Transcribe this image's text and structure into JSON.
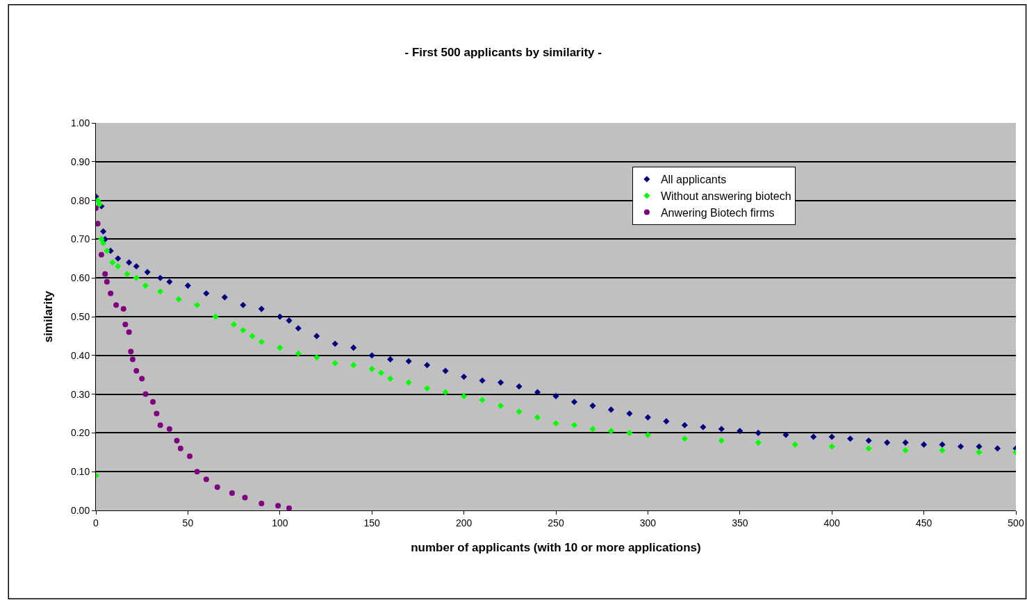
{
  "chart_data": {
    "type": "scatter",
    "title": "- First 500 applicants by similarity -",
    "xlabel": "number of applicants (with 10 or more applications)",
    "ylabel": "similarity",
    "xlim": [
      0,
      500
    ],
    "xticks": [
      0,
      50,
      100,
      150,
      200,
      250,
      300,
      350,
      400,
      450,
      500
    ],
    "ylim": [
      0,
      1
    ],
    "yticks": [
      {
        "value": 0,
        "label": "0.00"
      },
      {
        "value": 0.1,
        "label": "0.10"
      },
      {
        "value": 0.2,
        "label": "0.20"
      },
      {
        "value": 0.3,
        "label": "0.30"
      },
      {
        "value": 0.4,
        "label": "0.40"
      },
      {
        "value": 0.5,
        "label": "0.50"
      },
      {
        "value": 0.6,
        "label": "0.60"
      },
      {
        "value": 0.7,
        "label": "0.70"
      },
      {
        "value": 0.8,
        "label": "0.80"
      },
      {
        "value": 0.9,
        "label": "0.90"
      },
      {
        "value": 1,
        "label": "1.00"
      }
    ],
    "grid": "y",
    "legend": "top right",
    "marker": "diamond",
    "series": [
      {
        "name": "All applicants",
        "color": "#000080",
        "x": [
          0,
          3,
          4,
          5,
          8,
          12,
          18,
          22,
          28,
          35,
          40,
          50,
          60,
          70,
          80,
          90,
          100,
          105,
          110,
          120,
          130,
          140,
          150,
          160,
          170,
          180,
          190,
          200,
          210,
          220,
          230,
          240,
          250,
          260,
          270,
          280,
          290,
          300,
          310,
          320,
          330,
          340,
          350,
          360,
          375,
          390,
          400,
          410,
          420,
          430,
          440,
          450,
          460,
          470,
          480,
          490,
          500
        ],
        "values": [
          0.81,
          0.785,
          0.72,
          0.7,
          0.67,
          0.65,
          0.64,
          0.63,
          0.615,
          0.6,
          0.59,
          0.58,
          0.56,
          0.55,
          0.53,
          0.52,
          0.5,
          0.49,
          0.47,
          0.45,
          0.43,
          0.42,
          0.4,
          0.39,
          0.385,
          0.375,
          0.36,
          0.345,
          0.335,
          0.33,
          0.32,
          0.305,
          0.295,
          0.28,
          0.27,
          0.26,
          0.25,
          0.24,
          0.23,
          0.22,
          0.215,
          0.21,
          0.205,
          0.2,
          0.195,
          0.19,
          0.19,
          0.185,
          0.18,
          0.175,
          0.175,
          0.17,
          0.17,
          0.165,
          0.165,
          0.16,
          0.16
        ]
      },
      {
        "name": "Without answering biotech",
        "color": "#00ff00",
        "x": [
          0,
          1,
          2,
          3,
          4,
          6,
          9,
          12,
          17,
          22,
          27,
          35,
          45,
          55,
          65,
          75,
          80,
          85,
          90,
          100,
          110,
          120,
          130,
          140,
          150,
          155,
          160,
          170,
          180,
          190,
          200,
          210,
          220,
          230,
          240,
          250,
          260,
          270,
          280,
          290,
          300,
          320,
          340,
          360,
          380,
          400,
          420,
          440,
          460,
          480,
          500
        ],
        "values": [
          0.09,
          0.8,
          0.79,
          0.7,
          0.69,
          0.67,
          0.64,
          0.63,
          0.61,
          0.6,
          0.58,
          0.565,
          0.545,
          0.53,
          0.5,
          0.48,
          0.465,
          0.45,
          0.435,
          0.42,
          0.405,
          0.395,
          0.38,
          0.375,
          0.365,
          0.355,
          0.34,
          0.33,
          0.315,
          0.305,
          0.295,
          0.285,
          0.27,
          0.255,
          0.24,
          0.225,
          0.22,
          0.21,
          0.205,
          0.2,
          0.195,
          0.185,
          0.18,
          0.175,
          0.17,
          0.165,
          0.16,
          0.155,
          0.155,
          0.15,
          0.15
        ]
      },
      {
        "name": "Anwering Biotech firms",
        "color": "#800080",
        "marker": "circle",
        "x": [
          0,
          1,
          3,
          5,
          6,
          8,
          11,
          15,
          16,
          18,
          19,
          20,
          22,
          25,
          27,
          31,
          33,
          35,
          40,
          44,
          46,
          51,
          55,
          60,
          66,
          74,
          81,
          90,
          99,
          105
        ],
        "values": [
          0.78,
          0.74,
          0.66,
          0.61,
          0.59,
          0.56,
          0.53,
          0.52,
          0.48,
          0.46,
          0.41,
          0.39,
          0.36,
          0.34,
          0.3,
          0.28,
          0.25,
          0.22,
          0.21,
          0.18,
          0.16,
          0.14,
          0.1,
          0.08,
          0.06,
          0.045,
          0.033,
          0.018,
          0.012,
          0.006
        ]
      }
    ]
  }
}
